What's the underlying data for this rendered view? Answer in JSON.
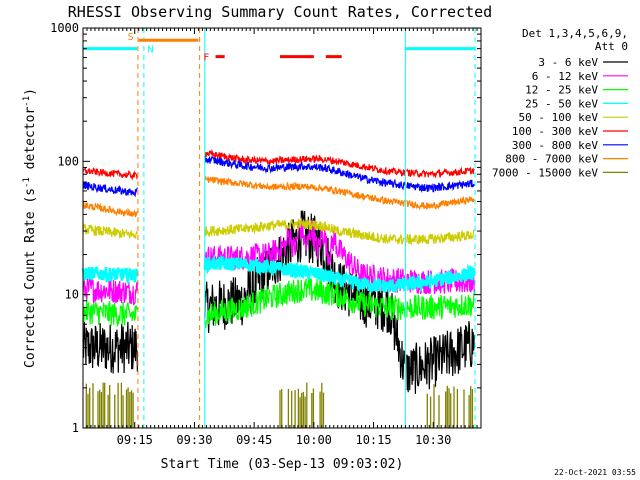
{
  "chart_data": {
    "type": "line",
    "title": "RHESSI Observing Summary Count Rates, Corrected",
    "xlabel": "Start Time (03-Sep-13 09:03:02)",
    "ylabel": "Corrected Count Rate (s",
    "ylabel_sup1": "-1",
    "ylabel_mid": " detector",
    "ylabel_sup2": "-1",
    "ylabel_end": ")",
    "yscale": "log",
    "ylim": [
      1,
      1000
    ],
    "xlim_minutes": [
      543,
      643
    ],
    "x_ticks": [
      {
        "t": 556,
        "label": "09:15"
      },
      {
        "t": 571,
        "label": "09:30"
      },
      {
        "t": 586,
        "label": "09:45"
      },
      {
        "t": 601,
        "label": "10:00"
      },
      {
        "t": 616,
        "label": "10:15"
      },
      {
        "t": 631,
        "label": "10:30"
      }
    ],
    "y_ticks": [
      {
        "v": 1,
        "label": "1"
      },
      {
        "v": 10,
        "label": "10"
      },
      {
        "v": 100,
        "label": "100"
      },
      {
        "v": 1000,
        "label": "1000"
      }
    ],
    "legend_header": [
      "Det 1,3,4,5,6,9,",
      "Att 0"
    ],
    "legend_position": "right",
    "series": [
      {
        "name": "3 - 6 keV",
        "color": "#000000",
        "base": [
          [
            543,
            4.0
          ],
          [
            556,
            4.0
          ],
          [
            574,
            8.0
          ],
          [
            583,
            9.0
          ],
          [
            590,
            16.0
          ],
          [
            598,
            28.0
          ],
          [
            603,
            24.0
          ],
          [
            607,
            12.0
          ],
          [
            613,
            9.0
          ],
          [
            620,
            8.0
          ],
          [
            624,
            2.6
          ],
          [
            632,
            3.2
          ],
          [
            641,
            4.3
          ]
        ]
      },
      {
        "name": "6 - 12 keV",
        "color": "#ff00ff",
        "base": [
          [
            543,
            11.0
          ],
          [
            556,
            10.5
          ],
          [
            574,
            19.0
          ],
          [
            583,
            19.0
          ],
          [
            590,
            20.0
          ],
          [
            598,
            28.0
          ],
          [
            603,
            25.0
          ],
          [
            607,
            22.0
          ],
          [
            613,
            14.0
          ],
          [
            620,
            13.0
          ],
          [
            630,
            12.5
          ],
          [
            641,
            12.5
          ]
        ]
      },
      {
        "name": "12 - 25 keV",
        "color": "#00ff00",
        "base": [
          [
            543,
            7.5
          ],
          [
            556,
            7.0
          ],
          [
            574,
            7.0
          ],
          [
            583,
            8.0
          ],
          [
            590,
            9.5
          ],
          [
            598,
            11.0
          ],
          [
            603,
            10.5
          ],
          [
            607,
            10.0
          ],
          [
            613,
            8.5
          ],
          [
            620,
            8.0
          ],
          [
            630,
            8.0
          ],
          [
            641,
            8.5
          ]
        ]
      },
      {
        "name": "25 - 50 keV",
        "color": "#00ffff",
        "base": [
          [
            543,
            14.5
          ],
          [
            556,
            14.0
          ],
          [
            574,
            17.0
          ],
          [
            583,
            17.0
          ],
          [
            590,
            16.0
          ],
          [
            598,
            15.0
          ],
          [
            603,
            14.0
          ],
          [
            607,
            13.0
          ],
          [
            613,
            12.0
          ],
          [
            620,
            11.5
          ],
          [
            630,
            12.5
          ],
          [
            641,
            14.5
          ]
        ]
      },
      {
        "name": "50 - 100 keV",
        "color": "#cccc00",
        "base": [
          [
            543,
            31.0
          ],
          [
            556,
            28.0
          ],
          [
            574,
            30.0
          ],
          [
            583,
            31.0
          ],
          [
            590,
            33.0
          ],
          [
            598,
            34.0
          ],
          [
            603,
            33.0
          ],
          [
            607,
            30.0
          ],
          [
            613,
            28.0
          ],
          [
            620,
            26.0
          ],
          [
            630,
            26.0
          ],
          [
            641,
            28.0
          ]
        ]
      },
      {
        "name": "100 - 300 keV",
        "color": "#ff0000",
        "base": [
          [
            543,
            85.0
          ],
          [
            556,
            78.0
          ],
          [
            574,
            115.0
          ],
          [
            583,
            103.0
          ],
          [
            590,
            100.0
          ],
          [
            598,
            104.0
          ],
          [
            603,
            104.0
          ],
          [
            607,
            100.0
          ],
          [
            613,
            92.0
          ],
          [
            620,
            84.0
          ],
          [
            630,
            80.0
          ],
          [
            641,
            85.0
          ]
        ]
      },
      {
        "name": "300 - 800 keV",
        "color": "#0000ff",
        "base": [
          [
            543,
            66.0
          ],
          [
            556,
            58.0
          ],
          [
            574,
            104.0
          ],
          [
            583,
            93.0
          ],
          [
            590,
            89.0
          ],
          [
            598,
            92.0
          ],
          [
            603,
            90.0
          ],
          [
            607,
            84.0
          ],
          [
            613,
            75.0
          ],
          [
            620,
            68.0
          ],
          [
            630,
            63.0
          ],
          [
            641,
            68.0
          ]
        ]
      },
      {
        "name": "800 - 7000 keV",
        "color": "#ff7f00",
        "base": [
          [
            543,
            47.0
          ],
          [
            556,
            40.0
          ],
          [
            574,
            73.0
          ],
          [
            583,
            68.0
          ],
          [
            590,
            64.0
          ],
          [
            598,
            65.0
          ],
          [
            603,
            63.0
          ],
          [
            607,
            60.0
          ],
          [
            613,
            55.0
          ],
          [
            620,
            50.0
          ],
          [
            630,
            46.0
          ],
          [
            641,
            52.0
          ]
        ]
      },
      {
        "name": "7000 - 15000 keV",
        "color": "#808000",
        "base": [
          [
            543,
            1.0
          ],
          [
            641,
            1.0
          ]
        ]
      }
    ],
    "gaps": [
      [
        556.8,
        573.6
      ],
      [
        624.0,
        624.3
      ]
    ],
    "markers": {
      "night_lines": [
        {
          "t": 558.3,
          "color": "#00ffff"
        },
        {
          "t": 641.5,
          "color": "#00ffff"
        }
      ],
      "saa_lines": [
        {
          "t": 556.8,
          "color": "#ff7f00"
        },
        {
          "t": 572.3,
          "color": "#ff7f00"
        }
      ],
      "solid_cyan": [
        {
          "t": 573.6
        },
        {
          "t": 624.0
        }
      ],
      "night_bars": [
        {
          "from": 543,
          "to": 556.6,
          "y": 700
        },
        {
          "from": 624.0,
          "to": 641.5,
          "y": 700
        }
      ],
      "saa_bar": {
        "from": 557,
        "to": 572,
        "y": 810
      },
      "flare_bars": [
        {
          "from": 576.3,
          "to": 578.6
        },
        {
          "from": 592.5,
          "to": 601.0
        },
        {
          "from": 604.0,
          "to": 608.0
        }
      ],
      "flare_y": 610,
      "labels": [
        {
          "text": "S",
          "t": 554.2,
          "y": 870,
          "color": "#ff7f00"
        },
        {
          "text": "N",
          "t": 559.2,
          "y": 700,
          "color": "#00ffff"
        },
        {
          "text": "F",
          "t": 573.2,
          "y": 610,
          "color": "#ff0000"
        }
      ]
    }
  },
  "footer": {
    "timestamp": "22-Oct-2021 03:55"
  }
}
